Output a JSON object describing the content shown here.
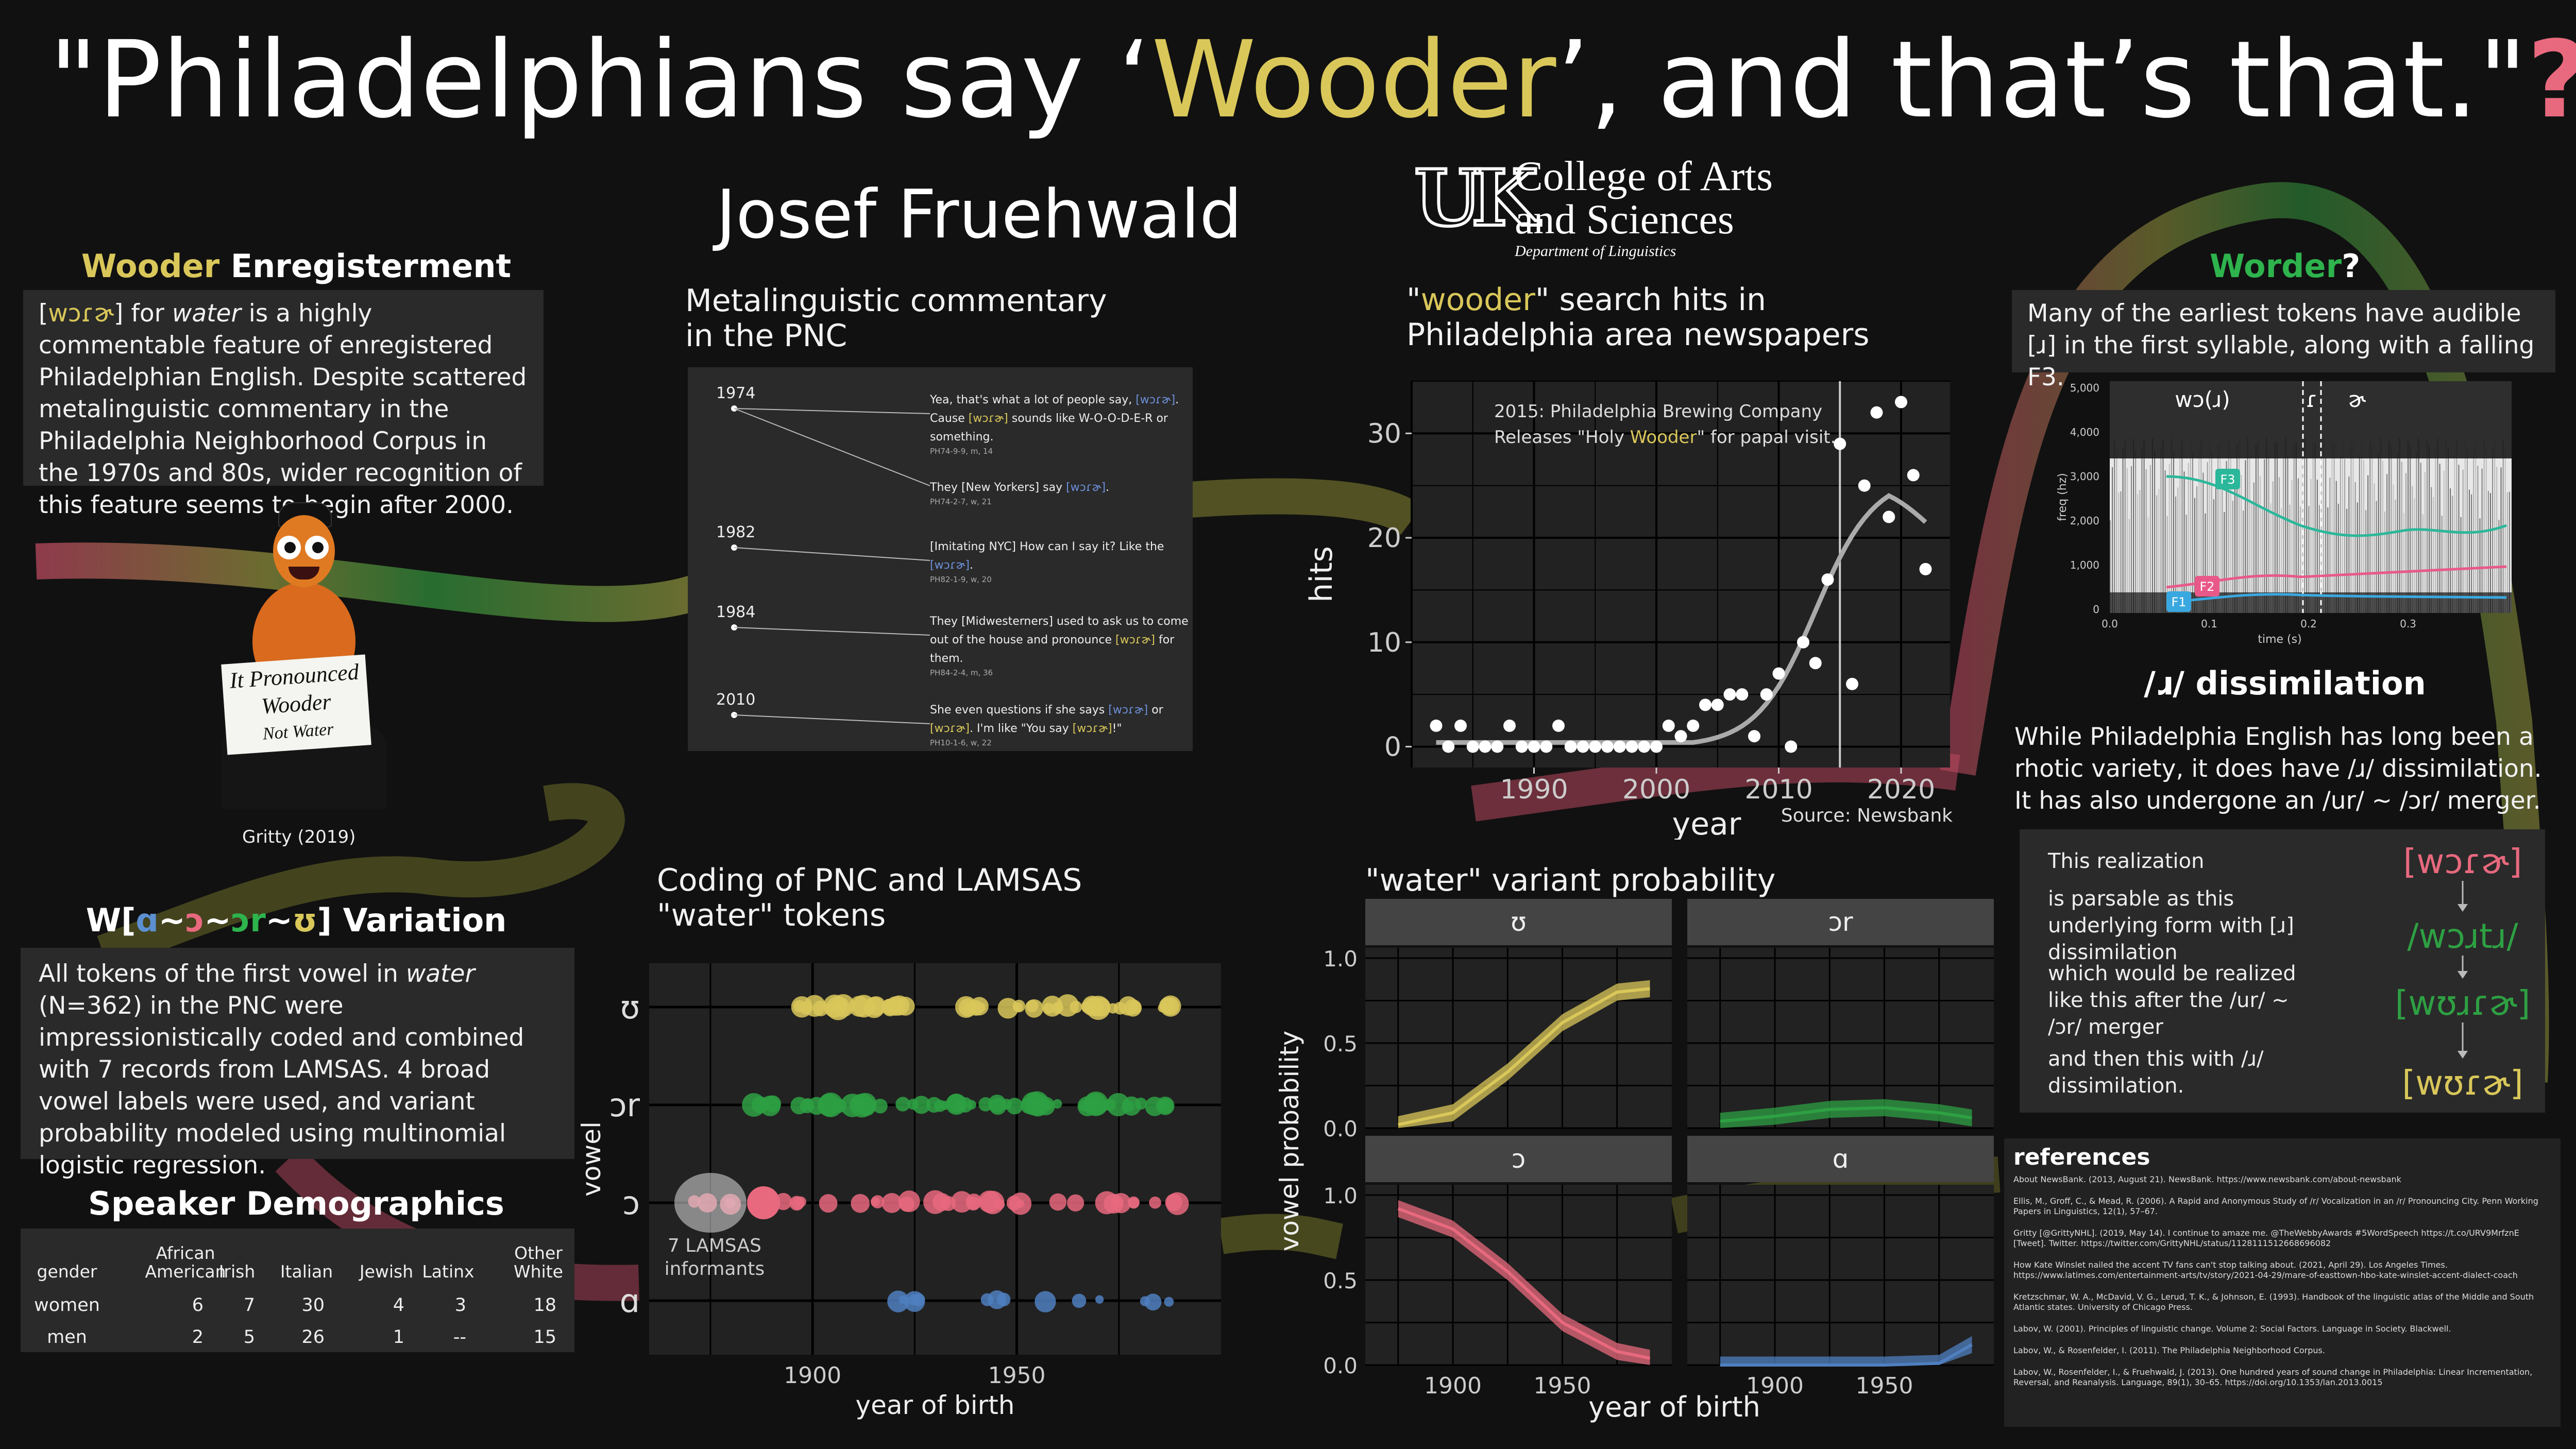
{
  "title": {
    "pre": "\"Philadelphians say ‘",
    "highlight": "Wooder",
    "post": "’, and that’s that.\"",
    "mark": "?"
  },
  "author": "Josef Fruehwald",
  "logo": {
    "line1": "College of Arts",
    "line2": "and Sciences",
    "dept": "Department of Linguistics"
  },
  "enreg": {
    "heading_a": "Wooder",
    "heading_b": " Enregisterment",
    "ipa": "wɔɾɚ",
    "t1": "] for ",
    "t2": "water",
    "t3": " is a highly commentable feature of enregistered Philadelphian English. Despite scattered metalinguistic commentary in the Philadelphia Neighborhood Corpus in the 1970s and 80s, wider recognition of this feature seems to begin after 2000.",
    "sign": [
      "It Pronounced",
      "Wooder",
      "Not Water"
    ],
    "caption": "Gritty (2019)"
  },
  "variation": {
    "heading": {
      "pre": "W[",
      "a": "ɑ",
      "s1": "~",
      "b": "ɔ",
      "s2": "~",
      "c": "ɔr",
      "s3": "~",
      "d": "ʊ",
      "post": "] Variation"
    },
    "t1": "All tokens of the first vowel in ",
    "t2": "water",
    "t3": " (N=362) in the PNC were impressionistically coded and combined with 7 records from LAMSAS. 4 broad vowel labels were used, and variant probability modeled using multinomial logistic regression."
  },
  "demographics": {
    "heading": "Speaker Demographics",
    "columns": [
      "gender",
      "African\nAmerican",
      "Irish",
      "Italian",
      "Jewish",
      "Latinx",
      "Other\nWhite"
    ],
    "rows": [
      [
        "women",
        "6",
        "7",
        "30",
        "4",
        "3",
        "18"
      ],
      [
        "men",
        "2",
        "5",
        "26",
        "1",
        "--",
        "15"
      ]
    ]
  },
  "meta": {
    "heading": "Metalinguistic commentary\nin the PNC",
    "entries": [
      {
        "year": "1974",
        "quotes": [
          [
            {
              "t": "Yea, that's what a lot of people say, "
            },
            {
              "t": "[wɔɾɚ]",
              "c": "b"
            },
            {
              "t": ". Cause "
            },
            {
              "t": "[wɔɾɚ]",
              "c": "y"
            },
            {
              "t": " sounds like W-O-O-D-E-R or something."
            }
          ],
          [
            {
              "t": "They [New Yorkers] say "
            },
            {
              "t": "[wɔɾɚ]",
              "c": "b"
            },
            {
              "t": "."
            }
          ]
        ],
        "cites": [
          "PH74-9-9, m, 14",
          "PH74-2-7, w, 21"
        ]
      },
      {
        "year": "1982",
        "quotes": [
          [
            {
              "t": "[Imitating NYC] How can I say it? Like the "
            },
            {
              "t": "[wɔɾɚ]",
              "c": "b"
            },
            {
              "t": "."
            }
          ]
        ],
        "cites": [
          "PH82-1-9, w, 20"
        ]
      },
      {
        "year": "1984",
        "quotes": [
          [
            {
              "t": "They [Midwesterners] used to ask us to come out of the house and pronounce "
            },
            {
              "t": "[wɔɾɚ]",
              "c": "y"
            },
            {
              "t": " for them."
            }
          ]
        ],
        "cites": [
          "PH84-2-4, m, 36"
        ]
      },
      {
        "year": "2010",
        "quotes": [
          [
            {
              "t": "She even questions if she says "
            },
            {
              "t": "[wɔɾɚ]",
              "c": "b"
            },
            {
              "t": " or "
            },
            {
              "t": "[wɔɾɚ]",
              "c": "y"
            },
            {
              "t": ". I'm like \"You say "
            },
            {
              "t": "[wɔɾɚ]",
              "c": "y"
            },
            {
              "t": "!\""
            }
          ]
        ],
        "cites": [
          "PH10-1-6, w, 22"
        ]
      }
    ]
  },
  "newspaper": {
    "heading_pre": "\"",
    "heading_hl": "wooder",
    "heading_post": "\" search hits in\nPhiladelphia area newspapers",
    "annotation_a": "2015: Philadelphia Brewing Company",
    "annotation_b": "Releases \"Holy ",
    "annotation_hl": "Wooder",
    "annotation_c": "\" for papal visit.",
    "source": "Source: Newsbank"
  },
  "worder": {
    "heading_a": "Worder",
    "heading_b": "?",
    "text": "Many of the earliest tokens have audible [ɹ] in the first syllable, along with a falling F3.",
    "segments": [
      "wɔ(ɹ)",
      "ɾ",
      "ɚ"
    ],
    "yticks": [
      "5,000",
      "4,000",
      "3,000",
      "2,000",
      "1,000",
      "0"
    ],
    "xticks": [
      "0.0",
      "0.1",
      "0.2",
      "0.3"
    ],
    "ylabel": "freq (hz)",
    "xlabel": "time (s)",
    "formants": [
      "F3",
      "F2",
      "F1"
    ]
  },
  "dissim": {
    "heading": "/ɹ/ dissimilation",
    "text": "While Philadelphia English has long been a rhotic variety, it does have /ɹ/ dissimilation. It has also undergone an /ur/ ~ /ɔr/ merger.",
    "rows": [
      {
        "label": "This realization",
        "form": "[wɔɾɚ]"
      },
      {
        "label": "is parsable as this underlying form with [ɹ] dissimilation",
        "form": "/wɔɹtɹ/"
      },
      {
        "label": "which would be realized like this after the /ur/ ~ /ɔr/ merger",
        "form": "[wʊɹɾɚ]"
      },
      {
        "label": "and then this with /ɹ/ dissimilation.",
        "form": "[wʊɾɚ]"
      }
    ]
  },
  "coding": {
    "heading": "Coding of PNC and LAMSAS\n\"water\" tokens",
    "annotation": "7 LAMSAS\ninformants"
  },
  "probability": {
    "heading": "\"water\" variant probability"
  },
  "references": {
    "heading": "references",
    "items": [
      "About NewsBank. (2013, August 21). NewsBank. https://www.newsbank.com/about-newsbank",
      "Ellis, M., Groff, C., & Mead, R. (2006). A Rapid and Anonymous Study of /r/ Vocalization in an /r/ Pronouncing City. Penn Working Papers in Linguistics, 12(1), 57–67.",
      "Gritty [@GrittyNHL]. (2019, May 14). I continue to amaze me. @TheWebbyAwards #5WordSpeech https://t.co/URV9MrfznE [Tweet]. Twitter. https://twitter.com/GrittyNHL/status/1128111512668696082",
      "How Kate Winslet nailed the accent TV fans can't stop talking about. (2021, April 29). Los Angeles Times. https://www.latimes.com/entertainment-arts/tv/story/2021-04-29/mare-of-easttown-hbo-kate-winslet-accent-dialect-coach",
      "Kretzschmar, W. A., McDavid, V. G., Lerud, T. K., & Johnson, E. (1993). Handbook of the linguistic atlas of the Middle and South Atlantic states. University of Chicago Press.",
      "Labov, W. (2001). Principles of linguistic change. Volume 2: Social Factors. Language in Society. Blackwell.",
      "Labov, W., & Rosenfelder, I. (2011). The Philadelphia Neighborhood Corpus.",
      "Labov, W., Rosenfelder, I., & Fruehwald, J. (2013). One hundred years of sound change in Philadelphia: Linear Incrementation, Reversal, and Reanalysis. Language, 89(1), 30–65. https://doi.org/10.1353/lan.2013.0015"
    ]
  },
  "colors": {
    "bg": "#111111",
    "panel": "#2a2a2a",
    "plot": "#222222",
    "yellow": "#d9c75a",
    "green": "#2ea043",
    "red": "#e8697e",
    "blue": "#4f7fbf",
    "pink": "#e8697e"
  },
  "chart_data": [
    {
      "type": "scatter",
      "ylabel": "hits",
      "xlabel": "year",
      "x": [
        1982,
        1983,
        1984,
        1985,
        1986,
        1987,
        1988,
        1989,
        1990,
        1991,
        1992,
        1993,
        1994,
        1995,
        1996,
        1997,
        1998,
        1999,
        2000,
        2001,
        2002,
        2003,
        2004,
        2005,
        2006,
        2007,
        2008,
        2009,
        2010,
        2011,
        2012,
        2013,
        2014,
        2015,
        2016,
        2017,
        2018,
        2019,
        2020,
        2021,
        2022
      ],
      "y": [
        2,
        0,
        2,
        0,
        0,
        0,
        2,
        0,
        0,
        0,
        2,
        0,
        0,
        0,
        0,
        0,
        0,
        0,
        0,
        2,
        1,
        2,
        4,
        4,
        5,
        5,
        1,
        5,
        7,
        0,
        10,
        8,
        16,
        29,
        6,
        25,
        32,
        22,
        33,
        26,
        17
      ],
      "xticks": [
        1990,
        2000,
        2010,
        2020
      ],
      "yticks": [
        0,
        10,
        20,
        30
      ],
      "xlim": [
        1980,
        2024
      ],
      "ylim": [
        -2,
        35
      ],
      "vline": 2015
    },
    {
      "type": "scatter",
      "title": "",
      "xlabel": "year of birth",
      "ylabel": "vowel",
      "categories": [
        "ʊ",
        "ɔr",
        "ɔ",
        "ɑ"
      ],
      "xticks": [
        1900,
        1950
      ],
      "xlim": [
        1860,
        2000
      ]
    },
    {
      "type": "area",
      "xlabel": "year of birth",
      "ylabel": "vowel probability",
      "panels": [
        {
          "label": "ʊ",
          "x": [
            1875,
            1900,
            1925,
            1950,
            1975,
            1990
          ],
          "y": [
            0.02,
            0.09,
            0.33,
            0.62,
            0.8,
            0.82
          ]
        },
        {
          "label": "ɔr",
          "x": [
            1875,
            1900,
            1925,
            1950,
            1975,
            1990
          ],
          "y": [
            0.04,
            0.07,
            0.11,
            0.12,
            0.09,
            0.06
          ]
        },
        {
          "label": "ɔ",
          "x": [
            1875,
            1900,
            1925,
            1950,
            1975,
            1990
          ],
          "y": [
            0.92,
            0.8,
            0.55,
            0.25,
            0.08,
            0.04
          ]
        },
        {
          "label": "ɑ",
          "x": [
            1875,
            1900,
            1925,
            1950,
            1975,
            1990
          ],
          "y": [
            0.0,
            0.0,
            0.0,
            0.0,
            0.01,
            0.12
          ]
        }
      ],
      "yticks": [
        0.0,
        0.5,
        1.0
      ],
      "xticks": [
        1900,
        1950
      ]
    }
  ]
}
